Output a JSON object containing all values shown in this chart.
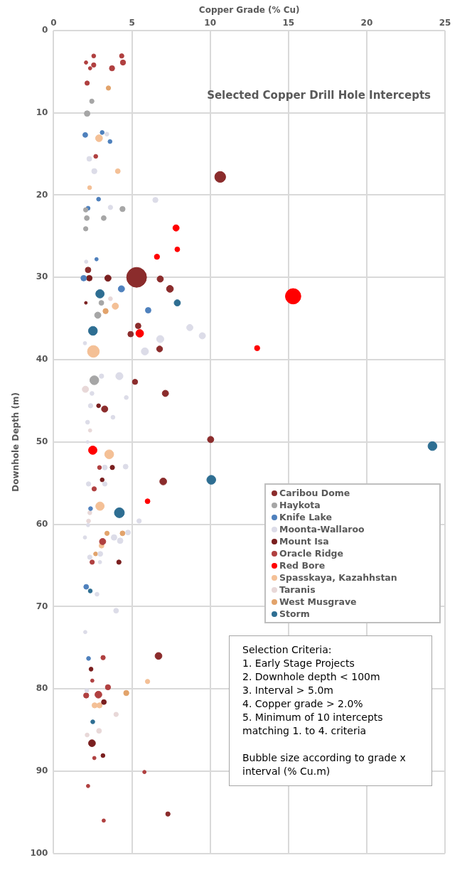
{
  "chart_data": {
    "type": "bubble",
    "title": "Selected Copper Drill Hole Intercepts",
    "xlabel": "Copper Grade (% Cu)",
    "ylabel": "Downhole Depth (m)",
    "xlim": [
      0,
      25
    ],
    "xticks": [
      0,
      5,
      10,
      15,
      20,
      25
    ],
    "ylim": [
      100,
      0
    ],
    "yticks": [
      0,
      10,
      20,
      30,
      40,
      50,
      60,
      70,
      80,
      90,
      100
    ],
    "grid": true,
    "legend": "right",
    "marker": "circle",
    "annotations": [
      "Selection Criteria:",
      "1. Early Stage Projects",
      "2. Downhole depth < 100m",
      "3. Interval > 5.0m",
      "4. Copper grade > 2.0%",
      "5. Minimum of 10 intercepts matching 1. to 4. criteria",
      "Bubble size according to grade x interval (% Cu.m)"
    ],
    "series": [
      {
        "name": "Caribou Dome",
        "color": "#8b2c2c",
        "x": [
          10.64,
          2.2,
          5.3,
          6.81,
          7.43,
          5.4,
          4.92,
          6.77,
          5.2,
          7.14,
          3.26,
          10.03,
          7.0,
          6.7,
          7.3
        ],
        "values": [
          17.8,
          29.1,
          30.0,
          30.2,
          31.4,
          35.9,
          36.9,
          38.7,
          42.7,
          44.1,
          46.0,
          49.7,
          54.8,
          76.0,
          95.2
        ],
        "sizes": [
          0.3,
          0.08,
          1,
          0.1,
          0.12,
          0.08,
          0.08,
          0.09,
          0.07,
          0.1,
          0.1,
          0.1,
          0.12,
          0.12,
          0.05
        ]
      },
      {
        "name": "Haykota",
        "color": "#a6a6a6",
        "x": [
          2.44,
          2.14,
          2.05,
          4.4,
          2.12,
          3.2,
          2.05,
          3.05,
          2.82,
          2.6
        ],
        "values": [
          8.6,
          10.1,
          21.8,
          21.7,
          22.8,
          22.8,
          24.1,
          33.1,
          34.6,
          42.5
        ],
        "sizes": [
          0.05,
          0.08,
          0.05,
          0.07,
          0.06,
          0.06,
          0.05,
          0.06,
          0.1,
          0.2
        ]
      },
      {
        "name": "Knife Lake",
        "color": "#4f81bd",
        "x": [
          2.02,
          3.1,
          3.6,
          2.87,
          2.2,
          2.74,
          1.92,
          4.33,
          6.04,
          2.36,
          2.08,
          2.23
        ],
        "values": [
          12.7,
          12.4,
          13.5,
          20.5,
          21.6,
          27.8,
          30.1,
          31.4,
          34.0,
          58.1,
          67.6,
          76.3
        ],
        "sizes": [
          0.06,
          0.04,
          0.04,
          0.04,
          0.04,
          0.03,
          0.08,
          0.1,
          0.08,
          0.04,
          0.06,
          0.04
        ]
      },
      {
        "name": "Moonta-Wallaroo",
        "color": "#dcdce8",
        "x": [
          3.4,
          2.28,
          2.6,
          6.5,
          3.63,
          2.08,
          8.7,
          9.5,
          6.81,
          2.0,
          5.83,
          3.06,
          4.2,
          2.45,
          4.64,
          2.36,
          3.79,
          2.17,
          2.17,
          3.27,
          4.6,
          2.23,
          3.27,
          5.46,
          2.2,
          2.0,
          3.86,
          4.25,
          4.75,
          2.98,
          2.31,
          2.96,
          2.77,
          3.99,
          2.02,
          2.12
        ],
        "values": [
          12.6,
          15.6,
          17.1,
          20.6,
          21.5,
          28.1,
          36.1,
          37.1,
          37.5,
          38.0,
          39.0,
          42.0,
          42.0,
          44.1,
          44.6,
          45.6,
          47.0,
          47.6,
          50.0,
          53.1,
          53.0,
          55.1,
          55.1,
          59.6,
          60.1,
          61.6,
          61.6,
          62.0,
          61.0,
          63.6,
          64.0,
          64.6,
          68.5,
          70.5,
          73.1,
          80.2
        ],
        "sizes": [
          0.04,
          0.06,
          0.07,
          0.07,
          0.05,
          0.03,
          0.1,
          0.1,
          0.13,
          0.03,
          0.13,
          0.05,
          0.13,
          0.04,
          0.04,
          0.05,
          0.04,
          0.04,
          0.02,
          0.06,
          0.06,
          0.05,
          0.05,
          0.05,
          0.03,
          0.03,
          0.08,
          0.08,
          0.06,
          0.06,
          0.05,
          0.03,
          0.04,
          0.06,
          0.03,
          0.04
        ]
      },
      {
        "name": "Mount Isa",
        "color": "#7a1f1f",
        "x": [
          2.28,
          3.47,
          2.06,
          2.87,
          3.75,
          3.1,
          4.17,
          2.39,
          3.21,
          2.45,
          3.15
        ],
        "values": [
          30.1,
          30.1,
          33.1,
          45.6,
          53.1,
          54.6,
          64.6,
          77.6,
          81.6,
          86.6,
          88.1
        ],
        "sizes": [
          0.08,
          0.1,
          0.02,
          0.04,
          0.05,
          0.04,
          0.05,
          0.04,
          0.06,
          0.12,
          0.04
        ]
      },
      {
        "name": "Oracle Ridge",
        "color": "#b04040",
        "x": [
          2.56,
          4.35,
          2.07,
          2.56,
          2.33,
          4.43,
          3.73,
          2.14,
          2.69,
          2.93,
          2.59,
          3.13,
          2.46,
          3.16,
          2.47,
          3.47,
          2.08,
          2.86,
          2.6,
          5.8,
          2.2,
          3.2
        ],
        "values": [
          3.1,
          3.1,
          3.9,
          4.2,
          4.6,
          3.9,
          4.6,
          6.4,
          15.3,
          53.1,
          55.7,
          62.1,
          64.6,
          76.2,
          79.0,
          79.8,
          80.8,
          80.7,
          88.4,
          90.1,
          91.8,
          96.0
        ],
        "sizes": [
          0.04,
          0.05,
          0.03,
          0.05,
          0.03,
          0.07,
          0.07,
          0.05,
          0.04,
          0.04,
          0.05,
          0.1,
          0.05,
          0.05,
          0.03,
          0.07,
          0.07,
          0.12,
          0.03,
          0.03,
          0.03,
          0.03
        ]
      },
      {
        "name": "Red Bore",
        "color": "#ff0000",
        "x": [
          7.82,
          7.9,
          6.6,
          15.3,
          5.5,
          13.0,
          2.5,
          6.0
        ],
        "values": [
          24.0,
          26.6,
          27.5,
          32.3,
          36.8,
          38.6,
          51.0,
          57.2
        ],
        "sizes": [
          0.1,
          0.06,
          0.07,
          0.6,
          0.15,
          0.07,
          0.18,
          0.06
        ]
      },
      {
        "name": "Spasskaya, Kazahhstan",
        "color": "#f4c096",
        "x": [
          2.9,
          4.1,
          2.3,
          3.94,
          2.54,
          3.55,
          2.96,
          3.06,
          6.0,
          2.62,
          2.93
        ],
        "values": [
          13.1,
          17.1,
          19.1,
          33.5,
          39.0,
          51.5,
          57.8,
          62.6,
          79.1,
          82.0,
          82.0
        ],
        "sizes": [
          0.12,
          0.06,
          0.04,
          0.1,
          0.35,
          0.2,
          0.18,
          0.06,
          0.05,
          0.07,
          0.07
        ]
      },
      {
        "name": "Taranis",
        "color": "#e8d8d8",
        "x": [
          3.63,
          2.03,
          2.33,
          2.31,
          2.23,
          3.99,
          2.9,
          2.14
        ],
        "values": [
          32.6,
          43.6,
          48.6,
          58.6,
          59.6,
          83.1,
          85.1,
          85.6
        ],
        "sizes": [
          0.04,
          0.1,
          0.03,
          0.04,
          0.04,
          0.05,
          0.06,
          0.04
        ]
      },
      {
        "name": "West Musgrave",
        "color": "#e2a36b",
        "x": [
          3.5,
          3.32,
          3.41,
          4.4,
          2.68,
          4.64
        ],
        "values": [
          7.0,
          34.1,
          61.1,
          61.1,
          63.6,
          80.5
        ],
        "sizes": [
          0.05,
          0.07,
          0.05,
          0.06,
          0.04,
          0.07
        ]
      },
      {
        "name": "Storm",
        "color": "#2e6e92",
        "x": [
          2.96,
          7.9,
          2.51,
          24.2,
          10.07,
          4.2,
          2.34,
          2.5
        ],
        "values": [
          32.0,
          33.1,
          36.5,
          50.5,
          54.6,
          58.6,
          68.1,
          84.0
        ],
        "sizes": [
          0.18,
          0.1,
          0.2,
          0.2,
          0.2,
          0.25,
          0.04,
          0.04
        ]
      }
    ]
  }
}
